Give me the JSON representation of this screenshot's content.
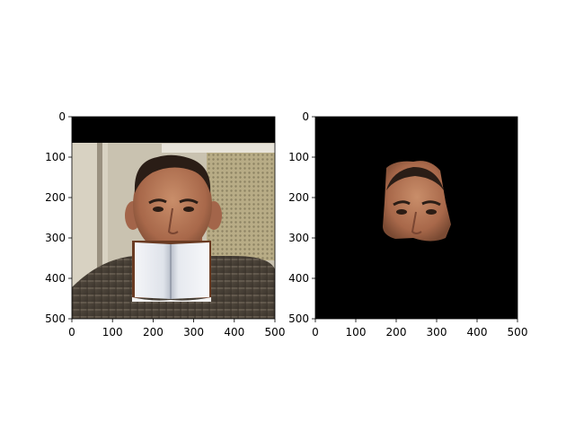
{
  "figure": {
    "background": "#ffffff"
  },
  "chart_data": [
    {
      "type": "image",
      "content": "photo of a man with a pasted open book covering his mouth and chin",
      "xlim": [
        0,
        500
      ],
      "ylim": [
        500,
        0
      ],
      "y_inverted": true,
      "xticks": [
        0,
        100,
        200,
        300,
        400,
        500
      ],
      "yticks": [
        0,
        100,
        200,
        300,
        400,
        500
      ],
      "tick_labels_x": [
        "0",
        "100",
        "200",
        "300",
        "400",
        "500"
      ],
      "tick_labels_y": [
        "0",
        "100",
        "200",
        "300",
        "400",
        "500"
      ],
      "regions": [
        {
          "label": "top black band",
          "y_range": [
            0,
            65
          ],
          "color": "#000000"
        },
        {
          "label": "face",
          "x_range": [
            135,
            345
          ],
          "y_range": [
            95,
            310
          ]
        },
        {
          "label": "open book overlay",
          "x_range": [
            148,
            342
          ],
          "y_range": [
            308,
            455
          ]
        }
      ],
      "grid": false
    },
    {
      "type": "image",
      "content": "segmented face region on black background",
      "xlim": [
        0,
        500
      ],
      "ylim": [
        500,
        0
      ],
      "y_inverted": true,
      "xticks": [
        0,
        100,
        200,
        300,
        400,
        500
      ],
      "yticks": [
        0,
        100,
        200,
        300,
        400,
        500
      ],
      "tick_labels_x": [
        "0",
        "100",
        "200",
        "300",
        "400",
        "500"
      ],
      "tick_labels_y": [
        "0",
        "100",
        "200",
        "300",
        "400",
        "500"
      ],
      "background_color": "#000000",
      "regions": [
        {
          "label": "face mask",
          "x_range": [
            165,
            335
          ],
          "y_range": [
            105,
            305
          ]
        }
      ],
      "grid": false
    }
  ]
}
